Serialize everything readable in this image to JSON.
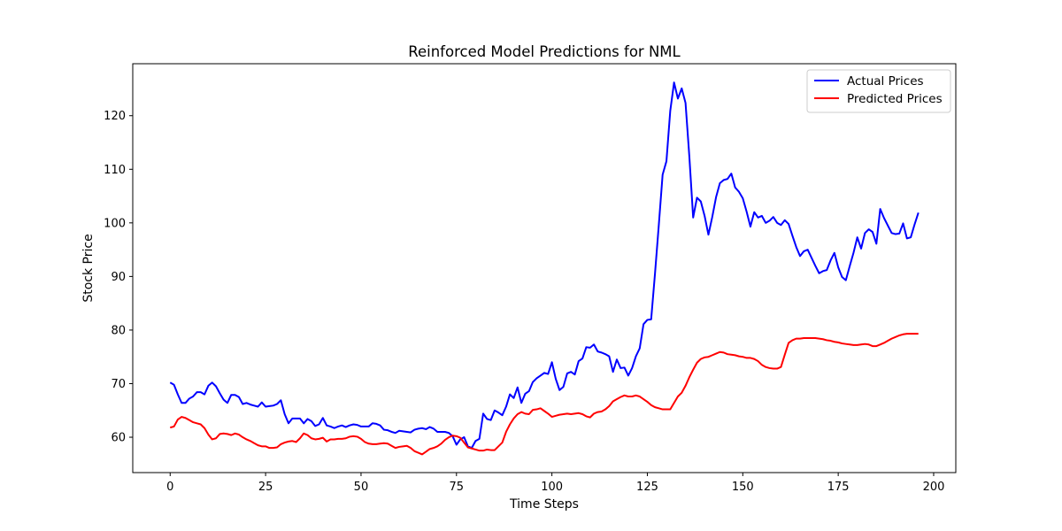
{
  "chart_data": {
    "type": "line",
    "title": "Reinforced Model Predictions for NML",
    "xlabel": "Time Steps",
    "ylabel": "Stock Price",
    "xlim": [
      -9.8,
      205.8
    ],
    "ylim": [
      53.4,
      129.7
    ],
    "xticks": [
      0,
      25,
      50,
      75,
      100,
      125,
      150,
      175,
      200
    ],
    "yticks": [
      60,
      70,
      80,
      90,
      100,
      110,
      120
    ],
    "grid": false,
    "legend_position": "top-right",
    "series": [
      {
        "name": "Actual Prices",
        "color": "#0000ff",
        "x": [
          0,
          1,
          2,
          3,
          4,
          5,
          6,
          7,
          8,
          9,
          10,
          11,
          12,
          13,
          14,
          15,
          16,
          17,
          18,
          19,
          20,
          21,
          22,
          23,
          24,
          25,
          26,
          27,
          28,
          29,
          30,
          31,
          32,
          33,
          34,
          35,
          36,
          37,
          38,
          39,
          40,
          41,
          42,
          43,
          44,
          45,
          46,
          47,
          48,
          49,
          50,
          51,
          52,
          53,
          54,
          55,
          56,
          57,
          58,
          59,
          60,
          61,
          62,
          63,
          64,
          65,
          66,
          67,
          68,
          69,
          70,
          71,
          72,
          73,
          74,
          75,
          76,
          77,
          78,
          79,
          80,
          81,
          82,
          83,
          84,
          85,
          86,
          87,
          88,
          89,
          90,
          91,
          92,
          93,
          94,
          95,
          96,
          97,
          98,
          99,
          100,
          101,
          102,
          103,
          104,
          105,
          106,
          107,
          108,
          109,
          110,
          111,
          112,
          113,
          114,
          115,
          116,
          117,
          118,
          119,
          120,
          121,
          122,
          123,
          124,
          125,
          126,
          127,
          128,
          129,
          130,
          131,
          132,
          133,
          134,
          135,
          136,
          137,
          138,
          139,
          140,
          141,
          142,
          143,
          144,
          145,
          146,
          147,
          148,
          149,
          150,
          151,
          152,
          153,
          154,
          155,
          156,
          157,
          158,
          159,
          160,
          161,
          162,
          163,
          164,
          165,
          166,
          167,
          168,
          169,
          170,
          171,
          172,
          173,
          174,
          175,
          176,
          177,
          178,
          179,
          180,
          181,
          182,
          183,
          184,
          185,
          186,
          187,
          188,
          189,
          190,
          191,
          192,
          193,
          194,
          195,
          196
        ],
        "values": [
          70.2,
          69.8,
          68.0,
          66.4,
          66.4,
          67.2,
          67.6,
          68.4,
          68.4,
          68.0,
          69.6,
          70.2,
          69.5,
          68.2,
          67.0,
          66.4,
          67.9,
          67.9,
          67.5,
          66.2,
          66.4,
          66.1,
          65.9,
          65.7,
          66.5,
          65.7,
          65.8,
          65.9,
          66.2,
          66.9,
          64.3,
          62.6,
          63.5,
          63.5,
          63.5,
          62.6,
          63.4,
          63.0,
          62.1,
          62.4,
          63.6,
          62.2,
          62.0,
          61.7,
          62.0,
          62.2,
          61.9,
          62.2,
          62.4,
          62.3,
          62.0,
          62.0,
          62.0,
          62.6,
          62.5,
          62.2,
          61.4,
          61.3,
          61.0,
          60.8,
          61.2,
          61.1,
          61.0,
          60.9,
          61.4,
          61.6,
          61.7,
          61.5,
          61.9,
          61.6,
          61.0,
          61.0,
          61.0,
          60.8,
          60.2,
          58.6,
          59.6,
          60.0,
          58.3,
          58.0,
          59.3,
          59.7,
          64.4,
          63.4,
          63.2,
          65.0,
          64.6,
          64.1,
          65.7,
          68.0,
          67.3,
          69.3,
          66.4,
          68.1,
          68.6,
          70.3,
          71.0,
          71.5,
          72.0,
          71.8,
          74.0,
          70.9,
          68.8,
          69.4,
          71.9,
          72.2,
          71.7,
          74.2,
          74.7,
          76.8,
          76.7,
          77.3,
          76.0,
          75.8,
          75.5,
          75.1,
          72.2,
          74.5,
          72.9,
          73.0,
          71.5,
          72.9,
          75.1,
          76.6,
          81.1,
          81.9,
          82.0,
          90.5,
          99.6,
          109.0,
          111.5,
          120.9,
          126.2,
          123.2,
          125.1,
          122.4,
          112.4,
          101.0,
          104.7,
          104.0,
          101.3,
          97.8,
          101.1,
          104.8,
          107.4,
          108.0,
          108.2,
          109.2,
          106.6,
          105.8,
          104.6,
          102.1,
          99.3,
          102.0,
          101.0,
          101.3,
          100.0,
          100.4,
          101.1,
          100.0,
          99.6,
          100.5,
          99.8,
          97.6,
          95.5,
          93.8,
          94.7,
          95.0,
          93.5,
          92.0,
          90.6,
          91.0,
          91.2,
          93.0,
          94.4,
          91.7,
          89.9,
          89.3,
          91.9,
          94.4,
          97.3,
          95.2,
          98.1,
          98.8,
          98.3,
          96.1,
          102.6,
          100.9,
          99.5,
          98.1,
          97.9,
          98.0,
          99.9,
          97.1,
          97.3,
          99.7,
          101.9
        ]
      },
      {
        "name": "Predicted Prices",
        "color": "#ff0000",
        "x": [
          0,
          1,
          2,
          3,
          4,
          5,
          6,
          7,
          8,
          9,
          10,
          11,
          12,
          13,
          14,
          15,
          16,
          17,
          18,
          19,
          20,
          21,
          22,
          23,
          24,
          25,
          26,
          27,
          28,
          29,
          30,
          31,
          32,
          33,
          34,
          35,
          36,
          37,
          38,
          39,
          40,
          41,
          42,
          43,
          44,
          45,
          46,
          47,
          48,
          49,
          50,
          51,
          52,
          53,
          54,
          55,
          56,
          57,
          58,
          59,
          60,
          61,
          62,
          63,
          64,
          65,
          66,
          67,
          68,
          69,
          70,
          71,
          72,
          73,
          74,
          75,
          76,
          77,
          78,
          79,
          80,
          81,
          82,
          83,
          84,
          85,
          86,
          87,
          88,
          89,
          90,
          91,
          92,
          93,
          94,
          95,
          96,
          97,
          98,
          99,
          100,
          101,
          102,
          103,
          104,
          105,
          106,
          107,
          108,
          109,
          110,
          111,
          112,
          113,
          114,
          115,
          116,
          117,
          118,
          119,
          120,
          121,
          122,
          123,
          124,
          125,
          126,
          127,
          128,
          129,
          130,
          131,
          132,
          133,
          134,
          135,
          136,
          137,
          138,
          139,
          140,
          141,
          142,
          143,
          144,
          145,
          146,
          147,
          148,
          149,
          150,
          151,
          152,
          153,
          154,
          155,
          156,
          157,
          158,
          159,
          160,
          161,
          162,
          163,
          164,
          165,
          166,
          167,
          168,
          169,
          170,
          171,
          172,
          173,
          174,
          175,
          176,
          177,
          178,
          179,
          180,
          181,
          182,
          183,
          184,
          185,
          186,
          187,
          188,
          189,
          190,
          191,
          192,
          193,
          194,
          195,
          196
        ],
        "values": [
          61.8,
          62.0,
          63.3,
          63.8,
          63.6,
          63.2,
          62.8,
          62.6,
          62.4,
          61.7,
          60.5,
          59.6,
          59.8,
          60.6,
          60.7,
          60.6,
          60.4,
          60.7,
          60.5,
          60.0,
          59.6,
          59.3,
          58.9,
          58.5,
          58.3,
          58.3,
          58.0,
          58.0,
          58.1,
          58.7,
          59.0,
          59.2,
          59.3,
          59.1,
          59.8,
          60.7,
          60.4,
          59.8,
          59.6,
          59.7,
          59.9,
          59.2,
          59.6,
          59.6,
          59.7,
          59.7,
          59.8,
          60.1,
          60.2,
          60.1,
          59.7,
          59.1,
          58.8,
          58.7,
          58.7,
          58.8,
          58.9,
          58.8,
          58.4,
          58.0,
          58.2,
          58.3,
          58.4,
          58.0,
          57.4,
          57.1,
          56.8,
          57.3,
          57.8,
          58.0,
          58.3,
          58.8,
          59.5,
          60.0,
          60.3,
          60.2,
          59.9,
          59.0,
          58.1,
          57.9,
          57.7,
          57.5,
          57.5,
          57.7,
          57.6,
          57.6,
          58.3,
          59.0,
          61.0,
          62.4,
          63.5,
          64.3,
          64.7,
          64.4,
          64.3,
          65.1,
          65.2,
          65.4,
          64.9,
          64.4,
          63.8,
          64.0,
          64.2,
          64.3,
          64.4,
          64.3,
          64.4,
          64.5,
          64.3,
          63.9,
          63.7,
          64.4,
          64.7,
          64.8,
          65.2,
          65.8,
          66.7,
          67.1,
          67.5,
          67.8,
          67.6,
          67.6,
          67.8,
          67.6,
          67.1,
          66.6,
          66.0,
          65.6,
          65.4,
          65.2,
          65.2,
          65.2,
          66.4,
          67.6,
          68.3,
          69.6,
          71.2,
          72.6,
          73.9,
          74.6,
          74.9,
          75.0,
          75.3,
          75.6,
          75.9,
          75.8,
          75.5,
          75.4,
          75.3,
          75.1,
          75.0,
          74.8,
          74.8,
          74.6,
          74.2,
          73.5,
          73.1,
          72.9,
          72.8,
          72.8,
          73.1,
          75.4,
          77.6,
          78.1,
          78.4,
          78.4,
          78.5,
          78.5,
          78.5,
          78.5,
          78.4,
          78.3,
          78.1,
          78.0,
          77.8,
          77.7,
          77.5,
          77.4,
          77.3,
          77.2,
          77.2,
          77.3,
          77.4,
          77.3,
          77.0,
          77.0,
          77.3,
          77.6,
          78.0,
          78.4,
          78.7,
          79.0,
          79.2,
          79.3,
          79.3,
          79.3,
          79.3
        ]
      }
    ]
  }
}
